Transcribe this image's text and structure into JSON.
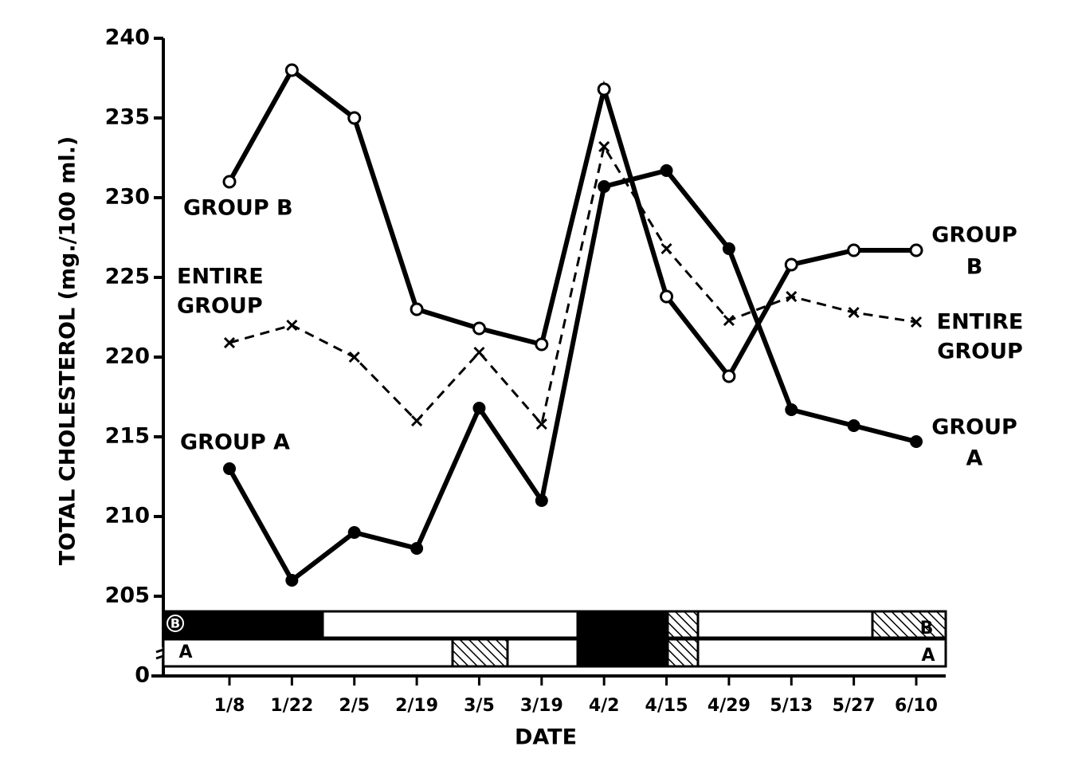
{
  "chart_data": {
    "type": "line",
    "y_axis_label": "TOTAL CHOLESTEROL (mg./100 ml.)",
    "x_axis_label": "DATE",
    "categories": [
      "1/8",
      "1/22",
      "2/5",
      "2/19",
      "3/5",
      "3/19",
      "4/2",
      "4/15",
      "4/29",
      "5/13",
      "5/27",
      "6/10"
    ],
    "ylim": [
      205,
      240
    ],
    "yticks": [
      205,
      210,
      215,
      220,
      225,
      230,
      235,
      240
    ],
    "axis_break_tick": 0,
    "series": [
      {
        "name": "GROUP B",
        "color": "#000000",
        "marker": "open-circle",
        "dashed": false,
        "left_label": [
          "GROUP B"
        ],
        "right_label": [
          "GROUP",
          "B"
        ],
        "values": [
          231,
          238,
          235,
          223,
          221.8,
          220.8,
          236.8,
          223.8,
          218.8,
          225.8,
          226.7,
          226.7
        ]
      },
      {
        "name": "ENTIRE GROUP",
        "color": "#000000",
        "marker": "cross",
        "dashed": true,
        "left_label": [
          "ENTIRE",
          "GROUP"
        ],
        "right_label": [
          "ENTIRE",
          "GROUP"
        ],
        "values": [
          220.9,
          222,
          220,
          216,
          220.3,
          215.8,
          233.2,
          226.8,
          222.3,
          223.8,
          222.8,
          222.2
        ]
      },
      {
        "name": "GROUP A",
        "color": "#000000",
        "marker": "filled-circle",
        "dashed": false,
        "left_label": [
          "GROUP A"
        ],
        "right_label": [
          "GROUP",
          "A"
        ],
        "values": [
          213,
          206,
          209,
          208,
          216.8,
          211,
          230.7,
          231.7,
          226.8,
          216.7,
          215.7,
          214.7
        ]
      }
    ],
    "schedule_rows": [
      {
        "left_label": "B",
        "right_label": "B"
      },
      {
        "left_label": "A",
        "right_label": "A"
      }
    ]
  }
}
